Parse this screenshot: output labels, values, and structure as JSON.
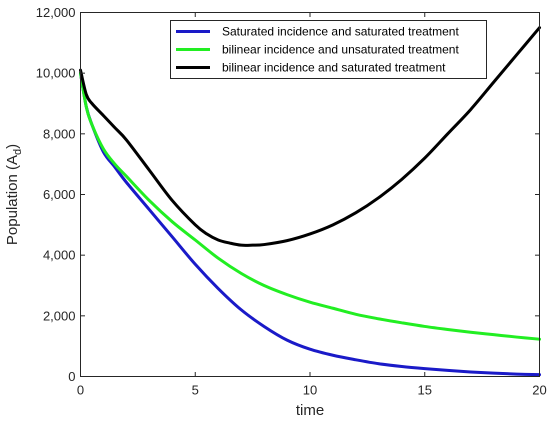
{
  "chart_data": {
    "type": "line",
    "xlabel": "time",
    "ylabel_main": "Population (A",
    "ylabel_sub": "d",
    "ylabel_close": ")",
    "xlim": [
      0,
      20
    ],
    "ylim": [
      0,
      12000
    ],
    "x_ticks": [
      0,
      5,
      10,
      15,
      20
    ],
    "x_tick_labels": [
      "0",
      "5",
      "10",
      "15",
      "20"
    ],
    "y_ticks": [
      0,
      2000,
      4000,
      6000,
      8000,
      10000,
      12000
    ],
    "y_tick_labels": [
      "0",
      "2,000",
      "4,000",
      "6,000",
      "8,000",
      "10,000",
      "12,000"
    ],
    "grid": false,
    "legend_position": "top-right",
    "series": [
      {
        "name": "Saturated incidence and saturated treatment",
        "color": "#1a1ac8",
        "x": [
          0,
          0.25,
          0.5,
          1,
          1.5,
          2,
          3,
          4,
          5,
          6,
          7,
          8,
          9,
          10,
          11,
          12,
          13,
          14,
          15,
          16,
          17,
          18,
          19,
          20
        ],
        "y": [
          10000,
          8900,
          8300,
          7400,
          6900,
          6400,
          5500,
          4600,
          3700,
          2900,
          2200,
          1650,
          1200,
          900,
          700,
          550,
          420,
          330,
          260,
          200,
          150,
          110,
          80,
          60
        ]
      },
      {
        "name": "bilinear incidence and unsaturated treatment",
        "color": "#22ee22",
        "x": [
          0,
          0.25,
          0.5,
          1,
          1.5,
          2,
          3,
          4,
          5,
          6,
          7,
          8,
          9,
          10,
          11,
          12,
          13,
          14,
          15,
          16,
          17,
          18,
          19,
          20
        ],
        "y": [
          10000,
          8900,
          8300,
          7500,
          7000,
          6600,
          5800,
          5100,
          4500,
          3900,
          3400,
          3000,
          2700,
          2450,
          2250,
          2050,
          1900,
          1770,
          1650,
          1550,
          1460,
          1380,
          1300,
          1230
        ]
      },
      {
        "name": "bilinear incidence and saturated treatment",
        "color": "#000000",
        "x": [
          0,
          0.25,
          0.5,
          1,
          1.5,
          2,
          3,
          4,
          5,
          5.5,
          6,
          6.5,
          7,
          7.5,
          8,
          9,
          10,
          11,
          12,
          13,
          14,
          15,
          16,
          17,
          18,
          19,
          20
        ],
        "y": [
          10100,
          9300,
          9000,
          8600,
          8200,
          7800,
          6800,
          5800,
          5000,
          4700,
          4500,
          4400,
          4330,
          4330,
          4350,
          4480,
          4700,
          5000,
          5400,
          5900,
          6500,
          7200,
          8000,
          8800,
          9700,
          10600,
          11500
        ]
      }
    ]
  },
  "colors": {
    "axis": "#262626",
    "background": "#ffffff"
  }
}
